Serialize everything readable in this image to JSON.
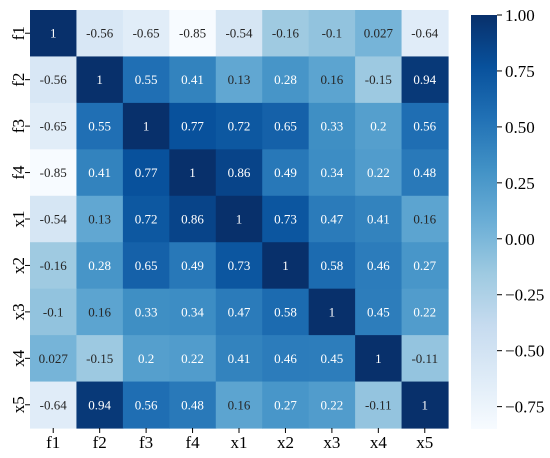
{
  "chart_data": {
    "type": "heatmap",
    "title": "",
    "xlabel": "",
    "ylabel": "",
    "labels": [
      "f1",
      "f2",
      "f3",
      "f4",
      "x1",
      "x2",
      "x3",
      "x4",
      "x5"
    ],
    "values": [
      [
        1,
        -0.56,
        -0.65,
        -0.85,
        -0.54,
        -0.16,
        -0.1,
        0.027,
        -0.64
      ],
      [
        -0.56,
        1,
        0.55,
        0.41,
        0.13,
        0.28,
        0.16,
        -0.15,
        0.94
      ],
      [
        -0.65,
        0.55,
        1,
        0.77,
        0.72,
        0.65,
        0.33,
        0.2,
        0.56
      ],
      [
        -0.85,
        0.41,
        0.77,
        1,
        0.86,
        0.49,
        0.34,
        0.22,
        0.48
      ],
      [
        -0.54,
        0.13,
        0.72,
        0.86,
        1,
        0.73,
        0.47,
        0.41,
        0.16
      ],
      [
        -0.16,
        0.28,
        0.65,
        0.49,
        0.73,
        1,
        0.58,
        0.46,
        0.27
      ],
      [
        -0.1,
        0.16,
        0.33,
        0.34,
        0.47,
        0.58,
        1,
        0.45,
        0.22
      ],
      [
        0.027,
        -0.15,
        0.2,
        0.22,
        0.41,
        0.46,
        0.45,
        1,
        -0.11
      ],
      [
        -0.64,
        0.94,
        0.56,
        0.48,
        0.16,
        0.27,
        0.22,
        -0.11,
        1
      ]
    ],
    "annotations": [
      [
        "1",
        "-0.56",
        "-0.65",
        "-0.85",
        "-0.54",
        "-0.16",
        "-0.1",
        "0.027",
        "-0.64"
      ],
      [
        "-0.56",
        "1",
        "0.55",
        "0.41",
        "0.13",
        "0.28",
        "0.16",
        "-0.15",
        "0.94"
      ],
      [
        "-0.65",
        "0.55",
        "1",
        "0.77",
        "0.72",
        "0.65",
        "0.33",
        "0.2",
        "0.56"
      ],
      [
        "-0.85",
        "0.41",
        "0.77",
        "1",
        "0.86",
        "0.49",
        "0.34",
        "0.22",
        "0.48"
      ],
      [
        "-0.54",
        "0.13",
        "0.72",
        "0.86",
        "1",
        "0.73",
        "0.47",
        "0.41",
        "0.16"
      ],
      [
        "-0.16",
        "0.28",
        "0.65",
        "0.49",
        "0.73",
        "1",
        "0.58",
        "0.46",
        "0.27"
      ],
      [
        "-0.1",
        "0.16",
        "0.33",
        "0.34",
        "0.47",
        "0.58",
        "1",
        "0.45",
        "0.22"
      ],
      [
        "0.027",
        "-0.15",
        "0.2",
        "0.22",
        "0.41",
        "0.46",
        "0.45",
        "1",
        "-0.11"
      ],
      [
        "-0.64",
        "0.94",
        "0.56",
        "0.48",
        "0.16",
        "0.27",
        "0.22",
        "-0.11",
        "1"
      ]
    ],
    "colormap": "Blues",
    "vmin": -0.85,
    "vmax": 1.0,
    "colorbar_ticks": [
      1.0,
      0.75,
      0.5,
      0.25,
      0.0,
      -0.25,
      -0.5,
      -0.75
    ],
    "colorbar_tick_labels": [
      "1.00",
      "0.75",
      "0.50",
      "0.25",
      "0.00",
      "−0.25",
      "−0.50",
      "−0.75"
    ],
    "colors": {
      "low": "#f7fbff",
      "high": "#08306b",
      "text_light": "#ffffff",
      "text_dark": "#262626"
    }
  }
}
